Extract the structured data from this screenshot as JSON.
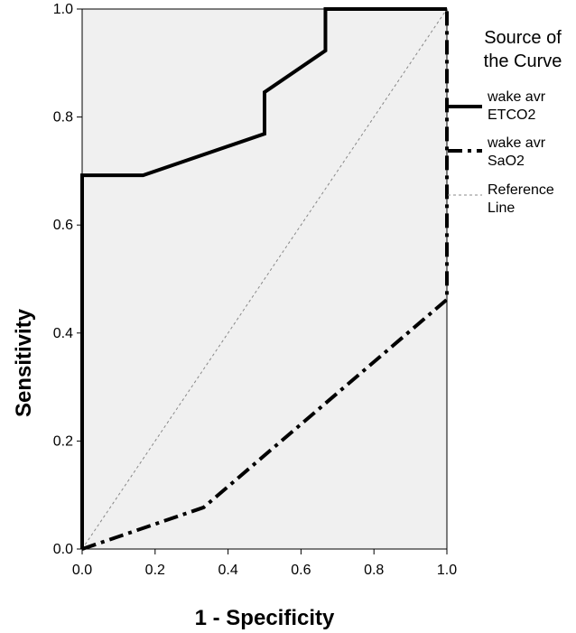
{
  "chart_data": {
    "type": "line",
    "xlabel": "1 - Specificity",
    "ylabel": "Sensitivity",
    "xlim": [
      0,
      1
    ],
    "ylim": [
      0,
      1
    ],
    "xticks": [
      "0.0",
      "0.2",
      "0.4",
      "0.6",
      "0.8",
      "1.0"
    ],
    "yticks": [
      "0.0",
      "0.2",
      "0.4",
      "0.6",
      "0.8",
      "1.0"
    ],
    "legend": {
      "title_lines": [
        "Source of",
        "the Curve"
      ],
      "placement": "right"
    },
    "series": [
      {
        "key": "etco2",
        "name_lines": [
          "wake avr",
          "ETCO2"
        ],
        "style": "solid",
        "color": "#000000",
        "x": [
          0,
          0,
          0.167,
          0.5,
          0.5,
          0.667,
          0.667,
          1.0,
          1.0
        ],
        "y": [
          0,
          0.692,
          0.692,
          0.769,
          0.846,
          0.923,
          1.0,
          1.0,
          1.0
        ]
      },
      {
        "key": "sao2",
        "name_lines": [
          "wake avr",
          "SaO2"
        ],
        "style": "dash-dot",
        "color": "#000000",
        "x": [
          0,
          0.333,
          1.0,
          1.0
        ],
        "y": [
          0,
          0.077,
          0.462,
          1.0
        ]
      },
      {
        "key": "reference",
        "name_lines": [
          "Reference",
          "Line"
        ],
        "style": "dashed",
        "color": "#888888",
        "x": [
          0,
          1
        ],
        "y": [
          0,
          1
        ]
      }
    ],
    "plot_background": "#f0f0f0"
  }
}
